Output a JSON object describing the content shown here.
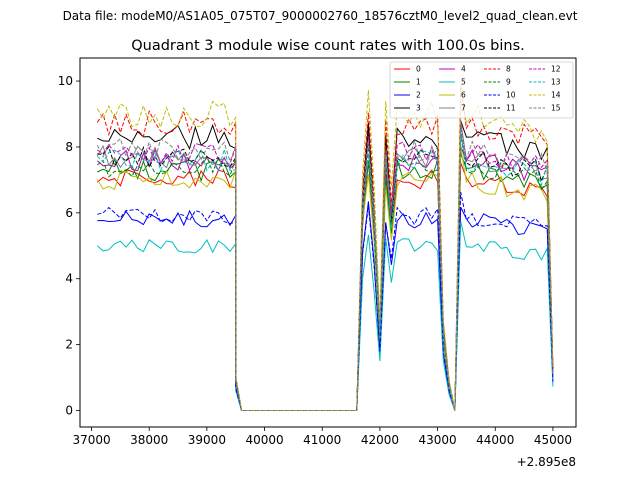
{
  "chart_data": {
    "type": "line",
    "suptitle": "Data file: modeM0/AS1A05_075T07_9000002760_18576cztM0_level2_quad_clean.evt",
    "title": "Quadrant 3 module wise count rates with 100.0s bins.",
    "xlabel": "",
    "ylabel": "",
    "x_offset_label": "+2.895e8",
    "xlim": [
      36800,
      45400
    ],
    "ylim": [
      -0.5,
      10.7
    ],
    "xticks": [
      37000,
      38000,
      39000,
      40000,
      41000,
      42000,
      43000,
      44000,
      45000
    ],
    "xtick_labels": [
      "37000",
      "38000",
      "39000",
      "40000",
      "41000",
      "42000",
      "43000",
      "44000",
      "45000"
    ],
    "yticks": [
      0,
      2,
      4,
      6,
      8,
      10
    ],
    "ytick_labels": [
      "0",
      "2",
      "4",
      "6",
      "8",
      "10"
    ],
    "legend_position": "top-right",
    "segments": [
      {
        "name": "early",
        "x_start": 37100,
        "x_end": 39500,
        "step": 100,
        "trend": "flat"
      },
      {
        "name": "drop",
        "x": [
          39500,
          39600
        ],
        "level_fraction": [
          0.12,
          0
        ]
      },
      {
        "name": "gap",
        "x_start": 39600,
        "x_end": 41600,
        "value": 0
      },
      {
        "name": "rise",
        "x": [
          41600,
          41700,
          41800
        ],
        "level_fraction": [
          0,
          0.8,
          1.07
        ]
      },
      {
        "name": "dips",
        "x": [
          41900,
          42000,
          42100,
          42200
        ],
        "level_fraction": [
          0.75,
          0.3,
          1.0,
          0.75
        ]
      },
      {
        "name": "middle",
        "x_start": 42300,
        "x_end": 43000,
        "step": 100,
        "trend": "flat"
      },
      {
        "name": "second-dip",
        "x": [
          43100,
          43200,
          43300,
          43400
        ],
        "level_fraction": [
          0.3,
          0.1,
          0.0,
          1.1
        ]
      },
      {
        "name": "late",
        "x_start": 43500,
        "x_end": 44900,
        "step": 100,
        "trend": "slight-decline"
      },
      {
        "name": "end",
        "x": [
          45000
        ],
        "level_fraction": [
          0.15
        ]
      }
    ],
    "series": [
      {
        "name": "0",
        "color": "#ff0000",
        "dash": "solid",
        "level": 7.0
      },
      {
        "name": "1",
        "color": "#008000",
        "dash": "solid",
        "level": 7.3
      },
      {
        "name": "2",
        "color": "#0000ff",
        "dash": "solid",
        "level": 5.8
      },
      {
        "name": "3",
        "color": "#000000",
        "dash": "solid",
        "level": 8.3
      },
      {
        "name": "4",
        "color": "#c000c0",
        "dash": "solid",
        "level": 7.6
      },
      {
        "name": "5",
        "color": "#00bfbf",
        "dash": "solid",
        "level": 5.0
      },
      {
        "name": "6",
        "color": "#bfbf00",
        "dash": "solid",
        "level": 7.0
      },
      {
        "name": "7",
        "color": "#808080",
        "dash": "solid",
        "level": 7.7
      },
      {
        "name": "8",
        "color": "#ff0000",
        "dash": "dashed",
        "level": 8.7
      },
      {
        "name": "9",
        "color": "#008000",
        "dash": "dashed",
        "level": 7.4
      },
      {
        "name": "10",
        "color": "#0000ff",
        "dash": "dashed",
        "level": 5.9
      },
      {
        "name": "11",
        "color": "#000000",
        "dash": "dashed",
        "level": 7.7
      },
      {
        "name": "12",
        "color": "#c000c0",
        "dash": "dashed",
        "level": 7.8
      },
      {
        "name": "13",
        "color": "#00bfbf",
        "dash": "dashed",
        "level": 7.6
      },
      {
        "name": "14",
        "color": "#bfbf00",
        "dash": "dashed",
        "level": 9.0
      },
      {
        "name": "15",
        "color": "#808080",
        "dash": "dashed",
        "level": 7.9
      }
    ]
  }
}
